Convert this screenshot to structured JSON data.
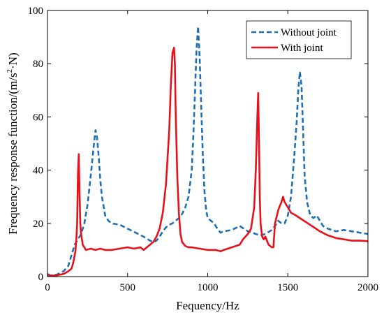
{
  "chart_data": {
    "type": "line",
    "xlabel": "Fequency/Hz",
    "ylabel_prefix": "Frequency response function/(m/s",
    "ylabel_sup": "2",
    "ylabel_suffix": "·N)",
    "xlim": [
      0,
      2000
    ],
    "ylim": [
      0,
      100
    ],
    "xticks": [
      0,
      500,
      1000,
      1500,
      2000
    ],
    "yticks": [
      0,
      20,
      40,
      60,
      80,
      100
    ],
    "grid": false,
    "legend_position": "top-right",
    "series": [
      {
        "name": "Without joint",
        "color": "#1f6fb4",
        "style": "dashed",
        "x": [
          0,
          20,
          60,
          100,
          130,
          150,
          170,
          190,
          210,
          230,
          250,
          270,
          290,
          300,
          310,
          320,
          330,
          340,
          360,
          380,
          400,
          450,
          500,
          550,
          600,
          640,
          660,
          680,
          700,
          720,
          740,
          760,
          780,
          800,
          820,
          840,
          860,
          880,
          900,
          910,
          920,
          930,
          940,
          950,
          960,
          970,
          980,
          990,
          1000,
          1020,
          1040,
          1060,
          1080,
          1100,
          1150,
          1200,
          1250,
          1300,
          1330,
          1360,
          1400,
          1420,
          1440,
          1460,
          1480,
          1500,
          1520,
          1540,
          1555,
          1565,
          1575,
          1585,
          1595,
          1605,
          1620,
          1640,
          1660,
          1680,
          1700,
          1720,
          1750,
          1800,
          1850,
          1900,
          1950,
          2000
        ],
        "y": [
          0.5,
          0.4,
          0.8,
          2,
          4,
          8,
          12,
          14,
          16,
          20,
          27,
          38,
          50,
          55,
          52,
          45,
          36,
          30,
          23,
          21,
          20,
          19.5,
          18,
          16.5,
          15,
          13.5,
          13,
          13.5,
          15,
          17,
          18.5,
          19.5,
          20,
          21,
          22,
          23.5,
          26,
          30,
          40,
          52,
          68,
          85,
          94,
          82,
          63,
          45,
          32,
          25,
          22,
          21,
          20,
          18,
          16.5,
          17,
          17.5,
          19,
          17,
          16,
          15.5,
          16,
          17.5,
          19,
          21,
          20,
          20,
          23,
          30,
          45,
          58,
          70,
          77,
          72,
          55,
          38,
          28,
          23,
          22,
          23,
          21,
          19,
          18,
          17,
          17.5,
          17,
          16.5,
          16
        ]
      },
      {
        "name": "With joint",
        "color": "#e8101a",
        "style": "solid",
        "x": [
          0,
          20,
          60,
          100,
          130,
          150,
          160,
          170,
          175,
          180,
          185,
          190,
          195,
          200,
          205,
          210,
          220,
          240,
          270,
          300,
          330,
          360,
          400,
          450,
          500,
          540,
          580,
          600,
          620,
          640,
          660,
          680,
          700,
          720,
          740,
          760,
          770,
          780,
          790,
          795,
          800,
          810,
          820,
          830,
          840,
          860,
          880,
          900,
          950,
          1000,
          1050,
          1080,
          1100,
          1150,
          1200,
          1220,
          1250,
          1270,
          1290,
          1300,
          1310,
          1315,
          1320,
          1325,
          1330,
          1340,
          1350,
          1360,
          1380,
          1400,
          1410,
          1420,
          1440,
          1460,
          1470,
          1480,
          1500,
          1520,
          1550,
          1600,
          1650,
          1700,
          1750,
          1800,
          1850,
          1900,
          1950,
          2000
        ],
        "y": [
          1,
          0.3,
          0.5,
          1,
          2,
          3,
          5,
          8,
          10,
          14,
          20,
          38,
          46,
          32,
          20,
          16,
          12,
          10,
          10.5,
          10,
          10.5,
          10,
          10,
          10.5,
          11,
          10.5,
          11,
          10,
          11,
          12,
          13,
          15,
          18,
          24,
          35,
          55,
          72,
          84,
          86,
          80,
          62,
          38,
          24,
          16,
          13,
          11.5,
          11,
          11,
          10.5,
          10,
          10,
          9.5,
          10,
          11,
          12,
          14,
          16,
          18,
          26,
          40,
          60,
          69,
          52,
          30,
          20,
          15,
          14,
          15,
          12,
          11,
          11,
          20,
          25,
          28,
          30,
          28,
          26,
          24,
          23,
          21,
          19,
          17,
          15.5,
          14.5,
          14,
          13.5,
          13.5,
          13.3
        ]
      }
    ]
  }
}
